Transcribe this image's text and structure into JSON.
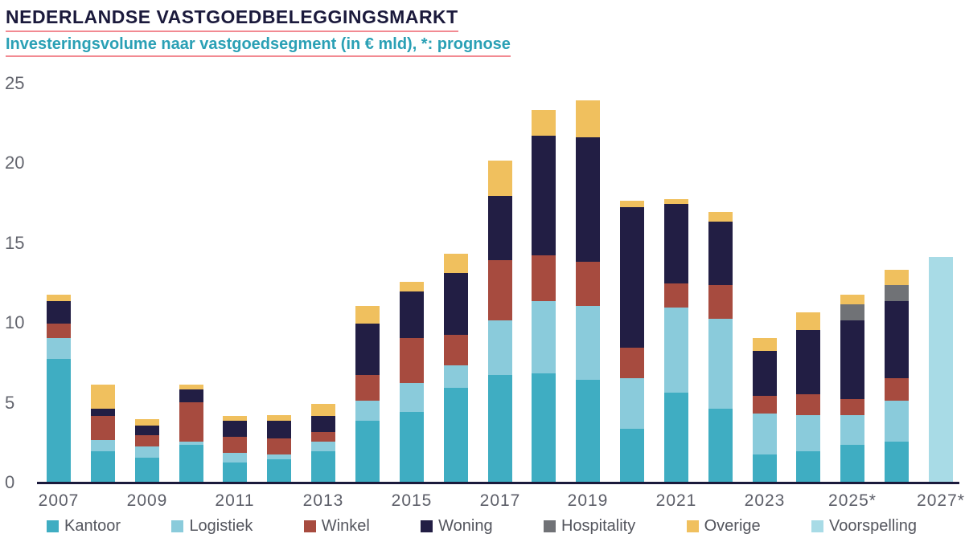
{
  "header": {
    "title": "NEDERLANDSE VASTGOEDBELEGGINGSMARKT",
    "subtitle": "Investeringsvolume naar vastgoedsegment (in € mld), *: prognose"
  },
  "colors": {
    "title": "#1b1a3c",
    "subtitle": "#2aa0b5",
    "underline": "#f28a92",
    "axis_line": "#1b1a3c",
    "tick_text": "#5c5e68",
    "legend_text": "#54565e"
  },
  "legend": {
    "items": [
      {
        "label": "Kantoor",
        "color": "#3fadc2",
        "dotted": false
      },
      {
        "label": "Logistiek",
        "color": "#8acbdb",
        "dotted": false
      },
      {
        "label": "Winkel",
        "color": "#a74b3f",
        "dotted": false
      },
      {
        "label": "Woning",
        "color": "#221e44",
        "dotted": false
      },
      {
        "label": "Hospitality",
        "color": "#707276",
        "dotted": false
      },
      {
        "label": "Overige",
        "color": "#f0c05e",
        "dotted": false
      },
      {
        "label": "Voorspelling",
        "color": "#a8dbe6",
        "dotted": true
      }
    ]
  },
  "chart_data": {
    "type": "bar",
    "stacked": true,
    "title": "NEDERLANDSE VASTGOEDBELEGGINGSMARKT",
    "subtitle": "Investeringsvolume naar vastgoedsegment (in € mld), *: prognose",
    "unit": "€ mld",
    "categories": [
      2007,
      2008,
      2009,
      2010,
      2011,
      2012,
      2013,
      2014,
      2015,
      2016,
      2017,
      2018,
      2019,
      2020,
      2021,
      2022,
      2023,
      2024,
      2025,
      2026,
      2027
    ],
    "x_tick_labels": [
      "2007",
      "2009",
      "2011",
      "2013",
      "2015",
      "2017",
      "2019",
      "2021",
      "2023",
      "2025*",
      "2027*"
    ],
    "y_ticks": [
      0,
      5,
      10,
      15,
      20,
      25
    ],
    "ylim": [
      0,
      25
    ],
    "grid": false,
    "legend_position": "bottom",
    "forecast_dotted_categories": [
      2026,
      2027
    ],
    "series": [
      {
        "name": "Kantoor",
        "color": "#3fadc2",
        "values": [
          7.7,
          1.9,
          1.5,
          2.3,
          1.2,
          1.4,
          1.9,
          3.8,
          4.4,
          5.9,
          6.7,
          6.8,
          6.4,
          3.3,
          5.6,
          4.6,
          1.7,
          1.9,
          2.3,
          2.5,
          0
        ]
      },
      {
        "name": "Logistiek",
        "color": "#8acbdb",
        "values": [
          1.3,
          0.7,
          0.7,
          0.2,
          0.6,
          0.3,
          0.6,
          1.3,
          1.8,
          1.4,
          3.4,
          4.5,
          4.6,
          3.2,
          5.3,
          5.6,
          2.6,
          2.3,
          1.9,
          2.6,
          0
        ]
      },
      {
        "name": "Winkel",
        "color": "#a74b3f",
        "values": [
          0.9,
          1.5,
          0.7,
          2.5,
          1.0,
          1.0,
          0.6,
          1.6,
          2.8,
          1.9,
          3.8,
          2.9,
          2.8,
          1.9,
          1.5,
          2.1,
          1.1,
          1.3,
          1.0,
          1.4,
          0
        ]
      },
      {
        "name": "Woning",
        "color": "#221e44",
        "values": [
          1.4,
          0.5,
          0.6,
          0.8,
          1.0,
          1.1,
          1.0,
          3.2,
          2.9,
          3.9,
          4.0,
          7.5,
          7.8,
          8.8,
          5.0,
          4.0,
          2.8,
          4.0,
          4.9,
          4.8,
          0
        ]
      },
      {
        "name": "Hospitality",
        "color": "#707276",
        "values": [
          0,
          0,
          0,
          0,
          0,
          0,
          0,
          0,
          0,
          0,
          0,
          0,
          0,
          0,
          0,
          0,
          0,
          0,
          1.0,
          1.0,
          0
        ]
      },
      {
        "name": "Overige",
        "color": "#f0c05e",
        "values": [
          0.4,
          1.5,
          0.4,
          0.3,
          0.3,
          0.4,
          0.8,
          1.1,
          0.6,
          1.2,
          2.2,
          1.6,
          2.3,
          0.4,
          0.3,
          0.6,
          0.8,
          1.1,
          0.6,
          1.0,
          0
        ]
      },
      {
        "name": "Voorspelling",
        "color": "#a8dbe6",
        "values": [
          0,
          0,
          0,
          0,
          0,
          0,
          0,
          0,
          0,
          0,
          0,
          0,
          0,
          0,
          0,
          0,
          0,
          0,
          0,
          0,
          14.1
        ]
      }
    ],
    "totals": [
      11.7,
      6.1,
      3.9,
      6.1,
      4.1,
      4.2,
      4.9,
      11.0,
      12.5,
      14.3,
      20.1,
      23.3,
      23.9,
      17.6,
      17.7,
      16.9,
      9.0,
      10.6,
      11.7,
      13.3,
      14.1
    ]
  }
}
